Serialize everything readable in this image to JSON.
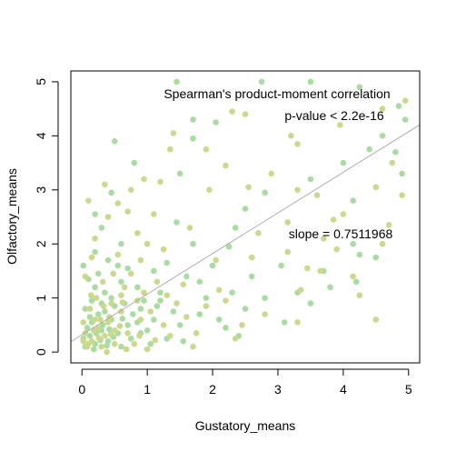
{
  "chart_data": {
    "type": "scatter",
    "xlabel": "Gustatory_means",
    "ylabel": "Olfactory_means",
    "xlim": [
      -0.17,
      5.17
    ],
    "ylim": [
      -0.2,
      5.2
    ],
    "x_ticks": [
      0,
      1,
      2,
      3,
      4,
      5
    ],
    "y_ticks": [
      0,
      1,
      2,
      3,
      4,
      5
    ],
    "grid": false,
    "colors": {
      "point_green": "#a8dca0",
      "point_khaki": "#ccd88c",
      "fit_line": "#a0a0a0",
      "axis": "#000000"
    },
    "regression_line": {
      "intercept": 0.32,
      "slope": 0.7511968
    },
    "annotations": {
      "test": "Spearman's product-moment correlation",
      "pvalue": "p-value < 2.2e-16",
      "slope": "slope = 0.7511968"
    },
    "points_green": [
      [
        1.45,
        5.0
      ],
      [
        2.75,
        5.0
      ],
      [
        3.5,
        5.0
      ],
      [
        4.25,
        4.9
      ],
      [
        4.85,
        4.55
      ],
      [
        1.7,
        4.3
      ],
      [
        2.05,
        4.25
      ],
      [
        4.95,
        4.3
      ],
      [
        4.6,
        4.0
      ],
      [
        0.5,
        3.9
      ],
      [
        1.7,
        3.95
      ],
      [
        4.8,
        3.7
      ],
      [
        4.4,
        3.75
      ],
      [
        0.8,
        3.5
      ],
      [
        1.5,
        3.3
      ],
      [
        4.9,
        3.3
      ],
      [
        3.5,
        3.2
      ],
      [
        2.8,
        2.95
      ],
      [
        4.0,
        3.5
      ],
      [
        4.15,
        2.8
      ],
      [
        0.45,
        2.95
      ],
      [
        2.5,
        2.65
      ],
      [
        0.2,
        2.55
      ],
      [
        1.45,
        2.4
      ],
      [
        2.35,
        2.3
      ],
      [
        4.15,
        2.0
      ],
      [
        1.7,
        2.0
      ],
      [
        4.25,
        1.8
      ],
      [
        4.5,
        1.75
      ],
      [
        2.25,
        1.95
      ],
      [
        0.2,
        1.85
      ],
      [
        1.3,
        1.65
      ],
      [
        3.05,
        1.6
      ],
      [
        0.7,
        1.55
      ],
      [
        1.6,
        1.4
      ],
      [
        2.3,
        1.1
      ],
      [
        1.9,
        1.0
      ],
      [
        2.8,
        1.0
      ],
      [
        3.3,
        1.1
      ],
      [
        3.8,
        1.2
      ],
      [
        3.5,
        0.9
      ],
      [
        2.5,
        0.8
      ],
      [
        1.2,
        0.95
      ],
      [
        0.9,
        0.8
      ],
      [
        1.8,
        0.7
      ],
      [
        2.2,
        0.45
      ],
      [
        1.5,
        0.5
      ],
      [
        2.4,
        0.3
      ],
      [
        3.7,
        1.5
      ],
      [
        4.2,
        1.3
      ],
      [
        0.3,
        0.9
      ],
      [
        0.6,
        1.3
      ],
      [
        1.1,
        0.6
      ],
      [
        0.9,
        0.35
      ],
      [
        1.3,
        0.25
      ],
      [
        0.05,
        0.1
      ],
      [
        0.12,
        0.3
      ],
      [
        0.2,
        0.15
      ],
      [
        0.3,
        0.4
      ],
      [
        0.15,
        0.55
      ],
      [
        0.25,
        0.7
      ],
      [
        0.4,
        0.2
      ],
      [
        0.08,
        0.45
      ],
      [
        0.35,
        1.1
      ],
      [
        0.45,
        0.6
      ],
      [
        0.55,
        0.35
      ],
      [
        0.1,
        1.35
      ],
      [
        0.5,
        0.85
      ],
      [
        0.7,
        0.5
      ],
      [
        0.6,
        0.1
      ],
      [
        0.02,
        0.25
      ],
      [
        0.18,
        0.05
      ],
      [
        0.28,
        0.22
      ],
      [
        0.38,
        0.12
      ],
      [
        0.22,
        0.35
      ],
      [
        0.32,
        0.5
      ],
      [
        0.12,
        0.65
      ],
      [
        0.42,
        0.42
      ],
      [
        0.05,
        0.8
      ],
      [
        0.15,
        0.95
      ],
      [
        0.48,
        0.28
      ],
      [
        0.62,
        0.62
      ],
      [
        0.75,
        0.25
      ],
      [
        0.85,
        0.55
      ],
      [
        1.0,
        0.4
      ],
      [
        1.05,
        0.15
      ],
      [
        1.2,
        1.1
      ],
      [
        1.4,
        0.75
      ],
      [
        0.02,
        1.6
      ],
      [
        0.3,
        2.3
      ],
      [
        0.6,
        2.0
      ],
      [
        0.85,
        1.2
      ],
      [
        1.1,
        1.5
      ],
      [
        1.55,
        0.2
      ],
      [
        2.1,
        0.6
      ],
      [
        2.6,
        1.4
      ],
      [
        3.1,
        0.55
      ],
      [
        1.8,
        1.3
      ],
      [
        2.0,
        1.6
      ],
      [
        0.4,
        1.7
      ],
      [
        0.25,
        1.45
      ],
      [
        0.65,
        0.9
      ],
      [
        0.78,
        0.7
      ],
      [
        0.95,
        0.95
      ],
      [
        1.15,
        0.85
      ],
      [
        0.55,
        1.6
      ],
      [
        0.35,
        0.75
      ],
      [
        0.45,
        1.0
      ],
      [
        0.2,
        1.2
      ]
    ],
    "points_khaki": [
      [
        1.35,
        3.75
      ],
      [
        1.9,
        3.75
      ],
      [
        2.3,
        4.45
      ],
      [
        2.5,
        4.4
      ],
      [
        3.2,
        4.0
      ],
      [
        3.3,
        3.85
      ],
      [
        3.95,
        4.2
      ],
      [
        4.6,
        4.5
      ],
      [
        4.75,
        3.5
      ],
      [
        4.95,
        4.65
      ],
      [
        1.4,
        4.05
      ],
      [
        0.95,
        3.2
      ],
      [
        1.2,
        3.15
      ],
      [
        1.95,
        3.0
      ],
      [
        2.55,
        3.05
      ],
      [
        3.3,
        3.0
      ],
      [
        3.6,
        2.9
      ],
      [
        4.5,
        3.05
      ],
      [
        4.9,
        2.9
      ],
      [
        0.55,
        2.75
      ],
      [
        0.35,
        3.1
      ],
      [
        1.1,
        2.55
      ],
      [
        1.65,
        2.3
      ],
      [
        2.7,
        2.2
      ],
      [
        3.15,
        2.4
      ],
      [
        3.85,
        2.45
      ],
      [
        4.7,
        2.35
      ],
      [
        4.6,
        2.0
      ],
      [
        0.1,
        2.8
      ],
      [
        0.85,
        2.2
      ],
      [
        2.05,
        1.7
      ],
      [
        2.6,
        1.75
      ],
      [
        3.15,
        1.85
      ],
      [
        3.45,
        1.55
      ],
      [
        3.9,
        1.9
      ],
      [
        1.25,
        1.9
      ],
      [
        0.9,
        1.7
      ],
      [
        1.55,
        1.25
      ],
      [
        2.1,
        1.15
      ],
      [
        3.35,
        1.15
      ],
      [
        3.65,
        1.5
      ],
      [
        4.15,
        1.4
      ],
      [
        4.5,
        0.6
      ],
      [
        3.3,
        0.55
      ],
      [
        2.8,
        0.7
      ],
      [
        2.45,
        0.5
      ],
      [
        1.75,
        0.35
      ],
      [
        1.35,
        0.3
      ],
      [
        4.25,
        1.05
      ],
      [
        0.6,
        1.05
      ],
      [
        0.4,
        0.55
      ],
      [
        0.25,
        0.45
      ],
      [
        0.15,
        0.2
      ],
      [
        0.08,
        0.1
      ],
      [
        0.5,
        0.15
      ],
      [
        0.35,
        0.3
      ],
      [
        0.7,
        0.35
      ],
      [
        0.8,
        0.15
      ],
      [
        0.9,
        0.6
      ],
      [
        1.05,
        0.75
      ],
      [
        1.25,
        0.5
      ],
      [
        0.6,
        0.75
      ],
      [
        0.45,
        0.9
      ],
      [
        0.18,
        0.4
      ],
      [
        0.28,
        0.6
      ],
      [
        0.38,
        0.0
      ],
      [
        0.05,
        0.35
      ],
      [
        0.02,
        0.55
      ],
      [
        0.12,
        0.8
      ],
      [
        0.22,
        1.0
      ],
      [
        0.32,
        1.3
      ],
      [
        0.48,
        1.45
      ],
      [
        0.65,
        1.2
      ],
      [
        0.75,
        1.45
      ],
      [
        0.95,
        1.1
      ],
      [
        1.15,
        1.3
      ],
      [
        1.3,
        1.05
      ],
      [
        1.45,
        0.9
      ],
      [
        1.6,
        0.65
      ],
      [
        1.9,
        0.85
      ],
      [
        2.2,
        0.95
      ],
      [
        2.35,
        0.25
      ],
      [
        1.7,
        0.1
      ],
      [
        0.2,
        2.1
      ],
      [
        0.4,
        2.5
      ],
      [
        0.7,
        2.6
      ],
      [
        1.0,
        2.0
      ],
      [
        0.15,
        1.75
      ],
      [
        0.55,
        1.8
      ],
      [
        0.85,
        0.95
      ],
      [
        0.02,
        0.2
      ],
      [
        0.1,
        0.15
      ],
      [
        0.3,
        0.1
      ],
      [
        0.42,
        0.65
      ],
      [
        0.58,
        0.48
      ],
      [
        0.68,
        0.05
      ],
      [
        0.88,
        0.3
      ],
      [
        1.0,
        0.05
      ],
      [
        0.2,
        0.6
      ],
      [
        0.5,
        0.4
      ],
      [
        0.14,
        1.05
      ],
      [
        0.33,
        0.85
      ],
      [
        0.26,
        0.26
      ],
      [
        0.44,
        0.33
      ],
      [
        3.7,
        2.1
      ],
      [
        4.0,
        2.55
      ],
      [
        2.9,
        3.3
      ],
      [
        2.2,
        3.45
      ],
      [
        0.75,
        3.0
      ],
      [
        0.05,
        1.4
      ],
      [
        0.62,
        0.92
      ],
      [
        1.12,
        0.22
      ]
    ]
  }
}
